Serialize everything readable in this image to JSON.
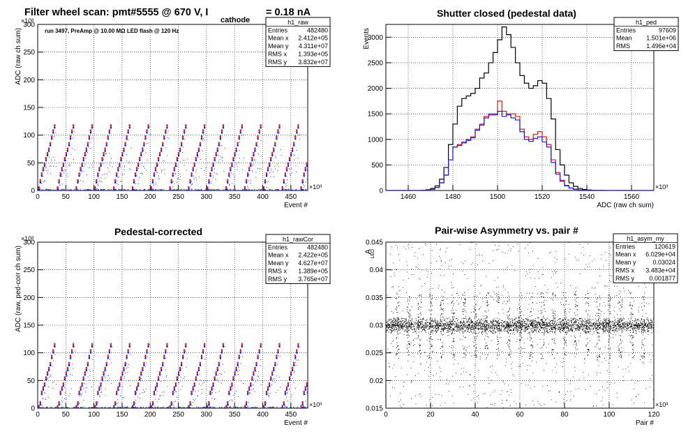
{
  "page": {
    "background": "#ffffff"
  },
  "colors": {
    "black": "#000000",
    "red": "#e0141a",
    "blue": "#1a1adc",
    "grid": "#000000"
  },
  "chart_data": [
    {
      "id": "raw",
      "type": "scatter",
      "title": "Filter wheel scan: pmt#5555 @   670 V, I",
      "title_subscript": "cathode",
      "title_suffix": "= 0.18 nA",
      "annotation": "run 3497, PreAmp @ 10.00 MΩ LED flash @  120 Hz",
      "xlabel": "Event #",
      "ylabel": "ADC (raw ch sum)",
      "x_exponent": "×10³",
      "y_exponent": "×10³",
      "xlim": [
        0,
        480
      ],
      "ylim": [
        0,
        300
      ],
      "xticks": [
        0,
        50,
        100,
        150,
        200,
        250,
        300,
        350,
        400,
        450
      ],
      "yticks": [
        0,
        50,
        100,
        150,
        200,
        250,
        300
      ],
      "grid": true,
      "step_levels": [
        5,
        18,
        30,
        40,
        48,
        58,
        67,
        75,
        85,
        97,
        108,
        117
      ],
      "cycle_period": 33.3,
      "stats": {
        "name": "h1_raw",
        "rows": [
          [
            "Entries",
            "482480"
          ],
          [
            "Mean x",
            "2.412e+05"
          ],
          [
            "Mean y",
            "4.311e+07"
          ],
          [
            "RMS x",
            "1.393e+05"
          ],
          [
            "RMS y",
            "3.832e+07"
          ]
        ]
      }
    },
    {
      "id": "ped",
      "type": "line",
      "title": "Shutter closed (pedestal data)",
      "xlabel": "ADC (raw ch sum)",
      "ylabel": "Events",
      "x_exponent": "×10³",
      "xlim": [
        1450,
        1570
      ],
      "ylim": [
        0,
        3250
      ],
      "xticks": [
        1460,
        1480,
        1500,
        1520,
        1540,
        1560
      ],
      "yticks": [
        0,
        500,
        1000,
        1500,
        2000,
        2500,
        3000
      ],
      "grid": true,
      "x": [
        1450,
        1452,
        1454,
        1456,
        1458,
        1460,
        1462,
        1464,
        1466,
        1468,
        1470,
        1472,
        1474,
        1476,
        1478,
        1480,
        1482,
        1484,
        1486,
        1488,
        1490,
        1492,
        1494,
        1496,
        1498,
        1500,
        1502,
        1504,
        1506,
        1508,
        1510,
        1512,
        1514,
        1516,
        1518,
        1520,
        1522,
        1524,
        1526,
        1528,
        1530,
        1532,
        1534,
        1536,
        1538,
        1540,
        1542,
        1544,
        1546,
        1548,
        1550,
        1552,
        1554,
        1556,
        1558,
        1560,
        1562,
        1564,
        1566,
        1568
      ],
      "series": [
        {
          "color": "#000000",
          "values": [
            0,
            0,
            0,
            0,
            0,
            0,
            0,
            0,
            5,
            15,
            40,
            90,
            220,
            450,
            900,
            1300,
            1650,
            1800,
            1850,
            1900,
            2000,
            2200,
            2300,
            2500,
            2700,
            2950,
            3200,
            3050,
            2800,
            2500,
            2250,
            2100,
            2000,
            2050,
            2150,
            2100,
            1800,
            1400,
            800,
            500,
            300,
            150,
            80,
            40,
            20,
            10,
            5,
            3,
            2,
            1,
            0,
            0,
            0,
            0,
            0,
            0,
            0,
            0,
            0,
            0
          ]
        },
        {
          "color": "#e0141a",
          "values": [
            0,
            0,
            0,
            0,
            0,
            0,
            0,
            0,
            3,
            10,
            25,
            60,
            150,
            300,
            600,
            850,
            900,
            950,
            1000,
            1050,
            1200,
            1300,
            1450,
            1500,
            1500,
            1750,
            1550,
            1500,
            1500,
            1450,
            1200,
            1050,
            1000,
            1100,
            1150,
            1050,
            900,
            600,
            350,
            200,
            100,
            50,
            25,
            12,
            6,
            3,
            2,
            1,
            0,
            0,
            0,
            0,
            0,
            0,
            0,
            0,
            0,
            0,
            0,
            0
          ]
        },
        {
          "color": "#1a1adc",
          "values": [
            0,
            0,
            0,
            0,
            0,
            0,
            0,
            0,
            3,
            10,
            25,
            60,
            150,
            300,
            600,
            850,
            880,
            930,
            980,
            1030,
            1180,
            1280,
            1420,
            1480,
            1480,
            1550,
            1450,
            1480,
            1420,
            1380,
            1150,
            1000,
            960,
            1020,
            1050,
            950,
            850,
            550,
            320,
            180,
            90,
            45,
            22,
            10,
            5,
            3,
            1,
            1,
            0,
            0,
            0,
            0,
            0,
            0,
            0,
            0,
            0,
            0,
            0,
            0
          ]
        }
      ],
      "stats": {
        "name": "h1_ped",
        "rows": [
          [
            "Entries",
            "97609"
          ],
          [
            "Mean",
            "1.501e+06"
          ],
          [
            "RMS",
            "1.496e+04"
          ]
        ]
      }
    },
    {
      "id": "rawCor",
      "type": "scatter",
      "title": "Pedestal-corrected",
      "xlabel": "Event #",
      "ylabel": "ADC (raw, ped-corr ch sum)",
      "x_exponent": "×10³",
      "y_exponent": "×10³",
      "xlim": [
        0,
        480
      ],
      "ylim": [
        0,
        300
      ],
      "xticks": [
        0,
        50,
        100,
        150,
        200,
        250,
        300,
        350,
        400,
        450
      ],
      "yticks": [
        0,
        50,
        100,
        150,
        200,
        250,
        300
      ],
      "grid": true,
      "step_levels": [
        3,
        10,
        29,
        37,
        44,
        55,
        64,
        72,
        81,
        94,
        104,
        115
      ],
      "cycle_period": 33.3,
      "stats": {
        "name": "h1_rawCor",
        "rows": [
          [
            "Entries",
            "482480"
          ],
          [
            "Mean x",
            "2.422e+05"
          ],
          [
            "Mean y",
            "4.627e+07"
          ],
          [
            "RMS x",
            "1.389e+05"
          ],
          [
            "RMS y",
            "3.765e+07"
          ]
        ]
      }
    },
    {
      "id": "asym",
      "type": "scatter",
      "title": "Pair-wise Asymmetry vs. pair #",
      "xlabel": "Pair #",
      "ylabel": "A",
      "ylabel_subscript": "LED",
      "x_exponent": "×10³",
      "xlim": [
        0,
        120
      ],
      "ylim": [
        0.015,
        0.045
      ],
      "xticks": [
        0,
        20,
        40,
        60,
        80,
        100,
        120
      ],
      "yticks": [
        0.015,
        0.02,
        0.025,
        0.03,
        0.035,
        0.04,
        0.045
      ],
      "ytick_labels": [
        "0.015",
        "0.02",
        "0.025",
        "0.03",
        "0.035",
        "0.04",
        "0.045"
      ],
      "grid": true,
      "band_center": 0.03,
      "band_halfwidth": 0.0015,
      "spike_pairs": [
        5,
        10,
        15,
        20,
        25,
        30,
        35,
        40,
        45,
        50,
        55,
        60,
        65,
        70,
        75,
        80,
        85,
        90,
        95,
        100,
        105,
        110,
        115
      ],
      "stats": {
        "name": "h1_asym_my",
        "rows": [
          [
            "Entries",
            "120619"
          ],
          [
            "Mean x",
            "6.029e+04"
          ],
          [
            "Mean y",
            "0.03024"
          ],
          [
            "RMS x",
            "3.483e+04"
          ],
          [
            "RMS y",
            "0.001877"
          ]
        ]
      }
    }
  ]
}
